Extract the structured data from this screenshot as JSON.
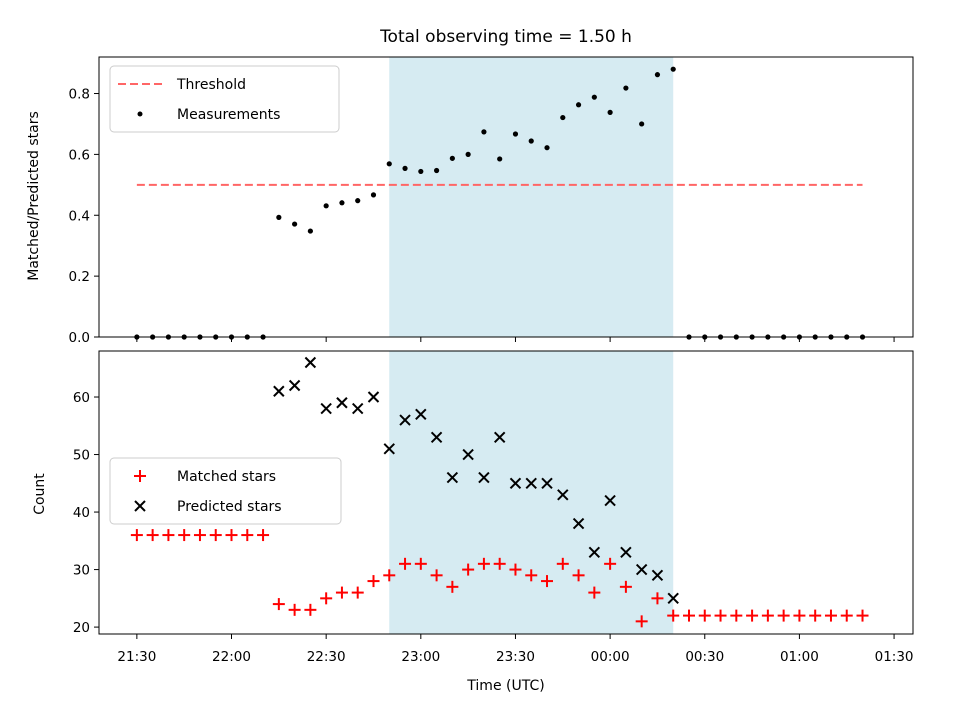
{
  "chart_data": [
    {
      "type": "scatter",
      "title": "Total observing time = 1.50 h",
      "xlabel": "",
      "ylabel": "Matched/Predicted stars",
      "xlim": [
        "21:18",
        "01:36"
      ],
      "ylim": [
        0,
        0.92
      ],
      "yticks": [
        "0.0",
        "0.2",
        "0.4",
        "0.6",
        "0.8"
      ],
      "grid": false,
      "legend_position": "upper-left",
      "shaded_interval": {
        "start": "22:50",
        "end": "00:20",
        "color": "#add8e6"
      },
      "threshold": {
        "name": "Threshold",
        "value": 0.5,
        "x_start": "21:30",
        "x_end": "01:20",
        "color": "#ff6666",
        "style": "dashed"
      },
      "series": [
        {
          "name": "Measurements",
          "marker": "dot",
          "color": "#000000",
          "points": [
            [
              "21:30",
              0.0
            ],
            [
              "21:35",
              0.0
            ],
            [
              "21:40",
              0.0
            ],
            [
              "21:45",
              0.0
            ],
            [
              "21:50",
              0.0
            ],
            [
              "21:55",
              0.0
            ],
            [
              "22:00",
              0.0
            ],
            [
              "22:05",
              0.0
            ],
            [
              "22:10",
              0.0
            ],
            [
              "22:15",
              0.393
            ],
            [
              "22:20",
              0.371
            ],
            [
              "22:25",
              0.348
            ],
            [
              "22:30",
              0.431
            ],
            [
              "22:35",
              0.441
            ],
            [
              "22:40",
              0.448
            ],
            [
              "22:45",
              0.467
            ],
            [
              "22:50",
              0.569
            ],
            [
              "22:55",
              0.554
            ],
            [
              "23:00",
              0.544
            ],
            [
              "23:05",
              0.547
            ],
            [
              "23:10",
              0.587
            ],
            [
              "23:15",
              0.6
            ],
            [
              "23:20",
              0.674
            ],
            [
              "23:25",
              0.585
            ],
            [
              "23:30",
              0.667
            ],
            [
              "23:35",
              0.644
            ],
            [
              "23:40",
              0.622
            ],
            [
              "23:45",
              0.721
            ],
            [
              "23:50",
              0.763
            ],
            [
              "23:55",
              0.788
            ],
            [
              "00:00",
              0.738
            ],
            [
              "00:05",
              0.818
            ],
            [
              "00:10",
              0.7
            ],
            [
              "00:15",
              0.862
            ],
            [
              "00:20",
              0.88
            ],
            [
              "00:25",
              0.0
            ],
            [
              "00:30",
              0.0
            ],
            [
              "00:35",
              0.0
            ],
            [
              "00:40",
              0.0
            ],
            [
              "00:45",
              0.0
            ],
            [
              "00:50",
              0.0
            ],
            [
              "00:55",
              0.0
            ],
            [
              "01:00",
              0.0
            ],
            [
              "01:05",
              0.0
            ],
            [
              "01:10",
              0.0
            ],
            [
              "01:15",
              0.0
            ],
            [
              "01:20",
              0.0
            ]
          ]
        }
      ]
    },
    {
      "type": "scatter",
      "title": "",
      "xlabel": "Time (UTC)",
      "ylabel": "Count",
      "xlim": [
        "21:18",
        "01:36"
      ],
      "ylim": [
        18.8,
        68
      ],
      "yticks": [
        "20",
        "30",
        "40",
        "50",
        "60"
      ],
      "xticks": [
        "21:30",
        "22:00",
        "22:30",
        "23:00",
        "23:30",
        "00:00",
        "00:30",
        "01:00",
        "01:30"
      ],
      "grid": false,
      "legend_position": "center-left",
      "shaded_interval": {
        "start": "22:50",
        "end": "00:20",
        "color": "#add8e6"
      },
      "series": [
        {
          "name": "Matched stars",
          "marker": "plus",
          "color": "#ff0000",
          "points": [
            [
              "21:30",
              36
            ],
            [
              "21:35",
              36
            ],
            [
              "21:40",
              36
            ],
            [
              "21:45",
              36
            ],
            [
              "21:50",
              36
            ],
            [
              "21:55",
              36
            ],
            [
              "22:00",
              36
            ],
            [
              "22:05",
              36
            ],
            [
              "22:10",
              36
            ],
            [
              "22:15",
              24
            ],
            [
              "22:20",
              23
            ],
            [
              "22:25",
              23
            ],
            [
              "22:30",
              25
            ],
            [
              "22:35",
              26
            ],
            [
              "22:40",
              26
            ],
            [
              "22:45",
              28
            ],
            [
              "22:50",
              29
            ],
            [
              "22:55",
              31
            ],
            [
              "23:00",
              31
            ],
            [
              "23:05",
              29
            ],
            [
              "23:10",
              27
            ],
            [
              "23:15",
              30
            ],
            [
              "23:20",
              31
            ],
            [
              "23:25",
              31
            ],
            [
              "23:30",
              30
            ],
            [
              "23:35",
              29
            ],
            [
              "23:40",
              28
            ],
            [
              "23:45",
              31
            ],
            [
              "23:50",
              29
            ],
            [
              "23:55",
              26
            ],
            [
              "00:00",
              31
            ],
            [
              "00:05",
              27
            ],
            [
              "00:10",
              21
            ],
            [
              "00:15",
              25
            ],
            [
              "00:20",
              22
            ],
            [
              "00:25",
              22
            ],
            [
              "00:30",
              22
            ],
            [
              "00:35",
              22
            ],
            [
              "00:40",
              22
            ],
            [
              "00:45",
              22
            ],
            [
              "00:50",
              22
            ],
            [
              "00:55",
              22
            ],
            [
              "01:00",
              22
            ],
            [
              "01:05",
              22
            ],
            [
              "01:10",
              22
            ],
            [
              "01:15",
              22
            ],
            [
              "01:20",
              22
            ]
          ]
        },
        {
          "name": "Predicted stars",
          "marker": "x",
          "color": "#000000",
          "points": [
            [
              "22:15",
              61
            ],
            [
              "22:20",
              62
            ],
            [
              "22:25",
              66
            ],
            [
              "22:30",
              58
            ],
            [
              "22:35",
              59
            ],
            [
              "22:40",
              58
            ],
            [
              "22:45",
              60
            ],
            [
              "22:50",
              51
            ],
            [
              "22:55",
              56
            ],
            [
              "23:00",
              57
            ],
            [
              "23:05",
              53
            ],
            [
              "23:10",
              46
            ],
            [
              "23:15",
              50
            ],
            [
              "23:20",
              46
            ],
            [
              "23:25",
              53
            ],
            [
              "23:30",
              45
            ],
            [
              "23:35",
              45
            ],
            [
              "23:40",
              45
            ],
            [
              "23:45",
              43
            ],
            [
              "23:50",
              38
            ],
            [
              "23:55",
              33
            ],
            [
              "00:00",
              42
            ],
            [
              "00:05",
              33
            ],
            [
              "00:10",
              30
            ],
            [
              "00:15",
              29
            ],
            [
              "00:20",
              25
            ]
          ]
        }
      ]
    }
  ]
}
